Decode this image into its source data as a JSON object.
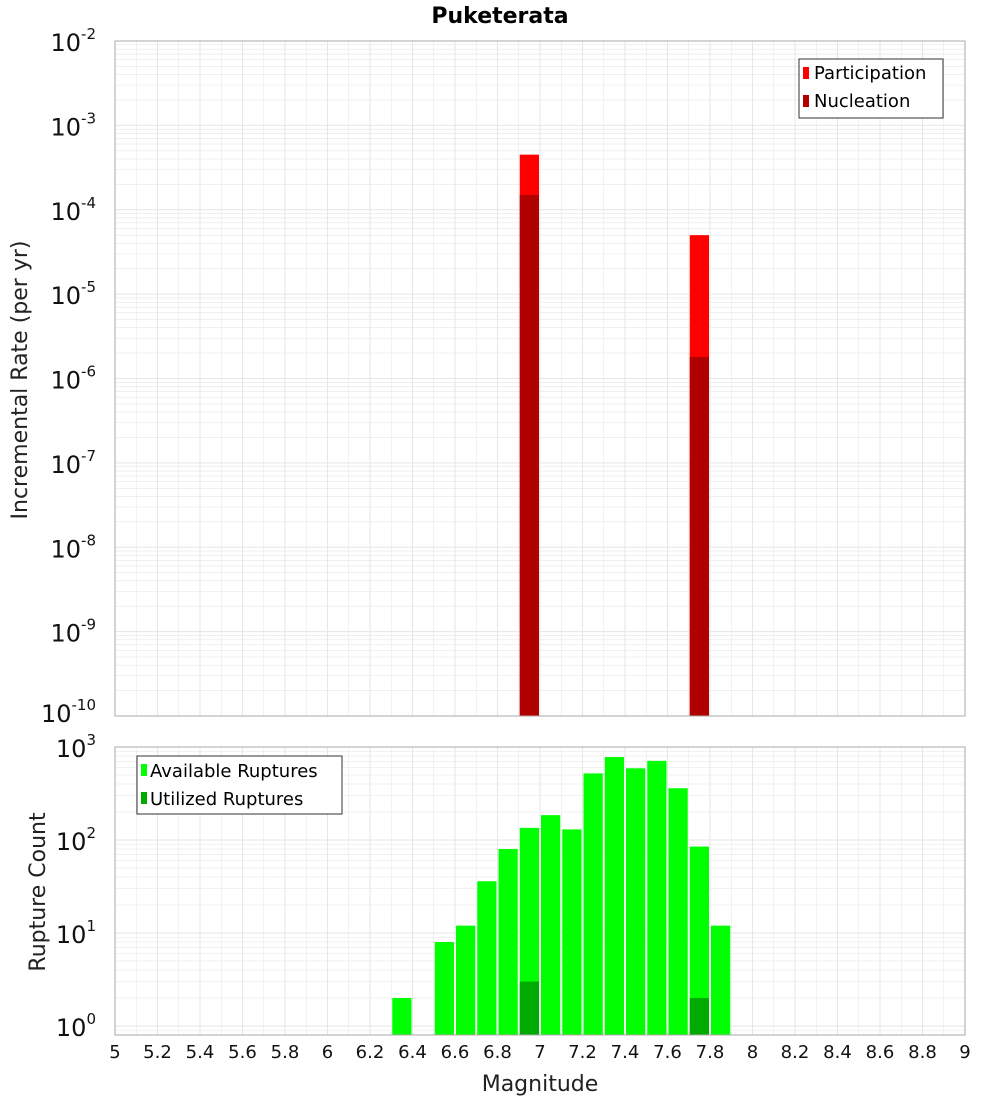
{
  "title": "Puketerata",
  "xlabel": "Magnitude",
  "colors": {
    "participation": "#ff0000",
    "nucleation": "#b00000",
    "available": "#00ff00",
    "utilized": "#00aa00",
    "grid": "#e6e6e6",
    "frame": "#aaaaaa"
  },
  "x_ticks": [
    "5",
    "5.2",
    "5.4",
    "5.6",
    "5.8",
    "6",
    "6.2",
    "6.4",
    "6.6",
    "6.8",
    "7",
    "7.2",
    "7.4",
    "7.6",
    "7.8",
    "8",
    "8.2",
    "8.4",
    "8.6",
    "8.8",
    "9"
  ],
  "chart_data": [
    {
      "type": "bar",
      "ylabel": "Incremental Rate (per yr)",
      "y_scale": "log",
      "xlim": [
        5,
        9
      ],
      "ylim": [
        1e-10,
        0.01
      ],
      "y_tick_exponents": [
        "-2",
        "-3",
        "-4",
        "-5",
        "-6",
        "-7",
        "-8",
        "-9",
        "-10"
      ],
      "legend_position": "top-right",
      "bin_width": 0.1,
      "series": [
        {
          "name": "Participation",
          "x": [
            6.95,
            7.75
          ],
          "values": [
            0.00045,
            5e-05
          ]
        },
        {
          "name": "Nucleation",
          "x": [
            6.95,
            7.75
          ],
          "values": [
            0.00015,
            1.8e-06
          ]
        }
      ]
    },
    {
      "type": "bar",
      "ylabel": "Rupture Count",
      "y_scale": "log",
      "xlim": [
        5,
        9
      ],
      "ylim": [
        0.8,
        1000
      ],
      "y_tick_exponents": [
        "3",
        "2",
        "1",
        "0"
      ],
      "legend_position": "top-left",
      "bin_width": 0.1,
      "series": [
        {
          "name": "Available Ruptures",
          "x": [
            6.35,
            6.55,
            6.65,
            6.75,
            6.85,
            6.95,
            7.05,
            7.15,
            7.25,
            7.35,
            7.45,
            7.55,
            7.65,
            7.75,
            7.85
          ],
          "values": [
            2,
            8,
            12,
            36,
            80,
            135,
            185,
            130,
            520,
            780,
            590,
            710,
            360,
            85,
            12
          ]
        },
        {
          "name": "Utilized Ruptures",
          "x": [
            6.95,
            7.75
          ],
          "values": [
            3,
            2
          ]
        }
      ]
    }
  ]
}
